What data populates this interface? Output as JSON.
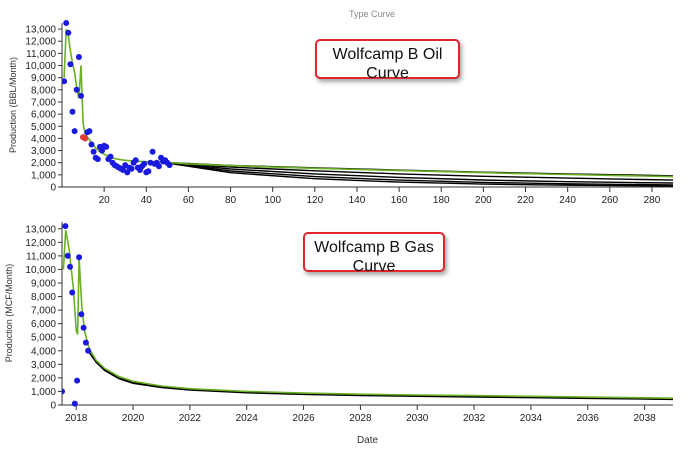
{
  "page_title": "Type Curve",
  "callouts": {
    "oil": {
      "line1": "Wolfcamp B Oil",
      "line2": "Curve"
    },
    "gas": {
      "line1": "Wolfcamp B Gas",
      "line2": "Curve"
    }
  },
  "colors": {
    "actual": "#1a1adf",
    "flagged": "#e53935",
    "fit": "#6ab023",
    "forecast": "#000000",
    "axis": "#333333"
  },
  "chart_data": [
    {
      "id": "oil",
      "type": "scatter",
      "title": "",
      "xlabel": "",
      "ylabel": "Production (BBL/Month)",
      "xlim": [
        0,
        290
      ],
      "ylim": [
        0,
        13500
      ],
      "x_ticks": [
        20,
        40,
        60,
        80,
        100,
        120,
        140,
        160,
        180,
        200,
        220,
        240,
        260,
        280
      ],
      "y_ticks": [
        0,
        1000,
        2000,
        3000,
        4000,
        5000,
        6000,
        7000,
        8000,
        9000,
        10000,
        11000,
        12000,
        13000
      ],
      "y_tick_labels": [
        "0",
        "1,000",
        "2,000",
        "3,000",
        "4,000",
        "5,000",
        "6,000",
        "7,000",
        "8,000",
        "9,000",
        "10,000",
        "11,000",
        "12,000",
        "13,000"
      ],
      "series": [
        {
          "kind": "points",
          "role": "actual",
          "points": [
            [
              1,
              8700
            ],
            [
              2,
              13500
            ],
            [
              3,
              12700
            ],
            [
              4,
              10100
            ],
            [
              5,
              6200
            ],
            [
              6,
              4600
            ],
            [
              7,
              8000
            ],
            [
              8,
              10700
            ],
            [
              9,
              7500
            ],
            [
              10,
              4100
            ],
            [
              11,
              4000
            ],
            [
              12,
              4500
            ],
            [
              13,
              4600
            ],
            [
              14,
              3500
            ],
            [
              15,
              2900
            ],
            [
              16,
              2400
            ],
            [
              17,
              2300
            ],
            [
              18,
              3300
            ],
            [
              19,
              3000
            ],
            [
              20,
              3400
            ],
            [
              21,
              3300
            ],
            [
              22,
              2300
            ],
            [
              23,
              2500
            ],
            [
              24,
              2000
            ],
            [
              25,
              1800
            ],
            [
              26,
              1700
            ],
            [
              27,
              1600
            ],
            [
              28,
              1500
            ],
            [
              29,
              1400
            ],
            [
              30,
              1800
            ],
            [
              31,
              1200
            ],
            [
              32,
              1600
            ],
            [
              33,
              1500
            ],
            [
              34,
              2000
            ],
            [
              35,
              2200
            ],
            [
              36,
              1600
            ],
            [
              37,
              1400
            ],
            [
              38,
              1700
            ],
            [
              39,
              1900
            ],
            [
              40,
              1200
            ],
            [
              41,
              1300
            ],
            [
              42,
              2000
            ],
            [
              43,
              2900
            ],
            [
              44,
              1900
            ],
            [
              45,
              2000
            ],
            [
              46,
              1700
            ],
            [
              47,
              2400
            ],
            [
              48,
              2100
            ],
            [
              49,
              2200
            ],
            [
              50,
              2000
            ],
            [
              51,
              1800
            ]
          ]
        },
        {
          "kind": "points",
          "role": "flagged",
          "points": [
            [
              10,
              4100
            ],
            [
              11,
              4000
            ]
          ]
        },
        {
          "kind": "line",
          "role": "fit",
          "points": [
            [
              1,
              9000
            ],
            [
              2,
              13000
            ],
            [
              3,
              12500
            ],
            [
              4,
              11200
            ],
            [
              5,
              10200
            ],
            [
              6,
              9400
            ],
            [
              7,
              8200
            ],
            [
              8,
              7300
            ],
            [
              9,
              10000
            ],
            [
              10,
              5200
            ],
            [
              11,
              4400
            ],
            [
              12,
              4100
            ],
            [
              13,
              3900
            ],
            [
              14,
              3700
            ],
            [
              16,
              3200
            ],
            [
              18,
              2900
            ],
            [
              20,
              2700
            ],
            [
              23,
              2450
            ],
            [
              26,
              2300
            ],
            [
              30,
              2200
            ],
            [
              35,
              2120
            ],
            [
              40,
              2080
            ],
            [
              45,
              2050
            ],
            [
              52,
              2000
            ],
            [
              60,
              1900
            ],
            [
              80,
              1760
            ],
            [
              100,
              1640
            ],
            [
              120,
              1540
            ],
            [
              150,
              1400
            ],
            [
              180,
              1270
            ],
            [
              210,
              1140
            ],
            [
              240,
              1030
            ],
            [
              270,
              920
            ],
            [
              290,
              860
            ]
          ]
        },
        {
          "kind": "line",
          "role": "forecast",
          "points": [
            [
              52,
              2000
            ],
            [
              80,
              1780
            ],
            [
              120,
              1580
            ],
            [
              160,
              1390
            ],
            [
              200,
              1220
            ],
            [
              240,
              1080
            ],
            [
              290,
              920
            ]
          ]
        },
        {
          "kind": "line",
          "role": "forecast",
          "points": [
            [
              52,
              1980
            ],
            [
              80,
              1640
            ],
            [
              120,
              1330
            ],
            [
              160,
              1080
            ],
            [
              200,
              880
            ],
            [
              240,
              730
            ],
            [
              290,
              570
            ]
          ]
        },
        {
          "kind": "line",
          "role": "forecast",
          "points": [
            [
              52,
              1960
            ],
            [
              80,
              1480
            ],
            [
              120,
              1080
            ],
            [
              160,
              790
            ],
            [
              200,
              580
            ],
            [
              240,
              440
            ],
            [
              290,
              330
            ]
          ]
        },
        {
          "kind": "line",
          "role": "forecast",
          "points": [
            [
              52,
              1940
            ],
            [
              80,
              1320
            ],
            [
              120,
              860
            ],
            [
              160,
              570
            ],
            [
              200,
              380
            ],
            [
              240,
              260
            ],
            [
              290,
              170
            ]
          ]
        },
        {
          "kind": "line",
          "role": "forecast",
          "points": [
            [
              52,
              1920
            ],
            [
              80,
              1180
            ],
            [
              120,
              680
            ],
            [
              160,
              400
            ],
            [
              200,
              240
            ],
            [
              240,
              150
            ],
            [
              290,
              90
            ]
          ]
        }
      ]
    },
    {
      "id": "gas",
      "type": "scatter",
      "title": "",
      "xlabel": "Date",
      "ylabel": "Production (MCF/Month)",
      "xlim": [
        2017.5,
        2039.0
      ],
      "ylim": [
        0,
        13500
      ],
      "x_ticks": [
        2018,
        2020,
        2022,
        2024,
        2026,
        2028,
        2030,
        2032,
        2034,
        2036,
        2038
      ],
      "x_tick_labels": [
        "2018",
        "2020",
        "2022",
        "2024",
        "2026",
        "2028",
        "2030",
        "2032",
        "2034",
        "2036",
        "2038"
      ],
      "y_ticks": [
        0,
        1000,
        2000,
        3000,
        4000,
        5000,
        6000,
        7000,
        8000,
        9000,
        10000,
        11000,
        12000,
        13000
      ],
      "y_tick_labels": [
        "0",
        "1,000",
        "2,000",
        "3,000",
        "4,000",
        "5,000",
        "6,000",
        "7,000",
        "8,000",
        "9,000",
        "10,000",
        "11,000",
        "12,000",
        "13,000"
      ],
      "series": [
        {
          "kind": "points",
          "role": "actual",
          "points": [
            [
              2017.5,
              1000
            ],
            [
              2017.62,
              13200
            ],
            [
              2017.7,
              11000
            ],
            [
              2017.78,
              10200
            ],
            [
              2017.86,
              8300
            ],
            [
              2017.95,
              100
            ],
            [
              2018.03,
              1800
            ],
            [
              2018.1,
              10900
            ],
            [
              2018.18,
              6700
            ],
            [
              2018.26,
              5700
            ],
            [
              2018.34,
              4600
            ],
            [
              2018.42,
              4000
            ]
          ]
        },
        {
          "kind": "line",
          "role": "fit",
          "points": [
            [
              2017.55,
              10000
            ],
            [
              2017.63,
              12900
            ],
            [
              2017.75,
              11500
            ],
            [
              2017.9,
              8600
            ],
            [
              2018.0,
              5500
            ],
            [
              2018.05,
              5200
            ],
            [
              2018.1,
              10800
            ],
            [
              2018.2,
              7200
            ],
            [
              2018.3,
              5400
            ],
            [
              2018.45,
              4200
            ],
            [
              2018.7,
              3300
            ],
            [
              2019.0,
              2700
            ],
            [
              2019.5,
              2100
            ],
            [
              2020.0,
              1750
            ],
            [
              2021.0,
              1400
            ],
            [
              2022.0,
              1200
            ],
            [
              2024.0,
              1000
            ],
            [
              2026.0,
              880
            ],
            [
              2028.0,
              800
            ],
            [
              2030.0,
              740
            ],
            [
              2032.0,
              690
            ],
            [
              2034.0,
              640
            ],
            [
              2036.0,
              580
            ],
            [
              2039.0,
              500
            ]
          ]
        },
        {
          "kind": "line",
          "role": "forecast",
          "points": [
            [
              2018.42,
              4000
            ],
            [
              2018.7,
              3200
            ],
            [
              2019.0,
              2600
            ],
            [
              2019.5,
              2000
            ],
            [
              2020.0,
              1650
            ],
            [
              2021.0,
              1330
            ],
            [
              2022.0,
              1150
            ],
            [
              2024.0,
              940
            ],
            [
              2026.0,
              820
            ],
            [
              2028.0,
              740
            ],
            [
              2030.0,
              680
            ],
            [
              2032.0,
              630
            ],
            [
              2034.0,
              580
            ],
            [
              2036.0,
              520
            ],
            [
              2039.0,
              430
            ]
          ]
        },
        {
          "kind": "line",
          "role": "forecast",
          "points": [
            [
              2018.42,
              4000
            ],
            [
              2018.7,
              3150
            ],
            [
              2019.0,
              2550
            ],
            [
              2019.5,
              1950
            ],
            [
              2020.0,
              1600
            ],
            [
              2021.0,
              1290
            ],
            [
              2022.0,
              1110
            ],
            [
              2024.0,
              900
            ],
            [
              2026.0,
              780
            ],
            [
              2028.0,
              700
            ],
            [
              2030.0,
              640
            ],
            [
              2032.0,
              590
            ],
            [
              2034.0,
              540
            ],
            [
              2036.0,
              490
            ],
            [
              2039.0,
              410
            ]
          ]
        }
      ]
    }
  ]
}
